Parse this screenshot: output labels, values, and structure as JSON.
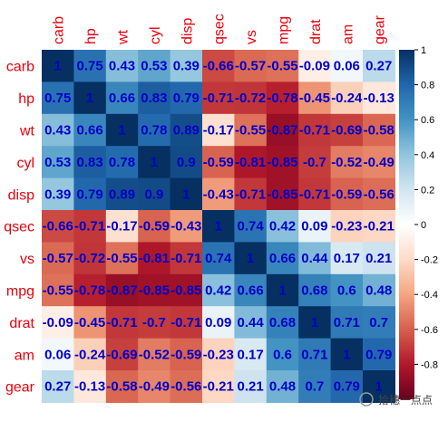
{
  "chart_data": {
    "type": "heatmap",
    "title": "",
    "variables": [
      "carb",
      "hp",
      "wt",
      "cyl",
      "disp",
      "qsec",
      "vs",
      "mpg",
      "drat",
      "am",
      "gear"
    ],
    "matrix": [
      [
        1,
        0.75,
        0.43,
        0.53,
        0.39,
        -0.66,
        -0.57,
        -0.55,
        -0.09,
        0.06,
        0.27
      ],
      [
        0.75,
        1,
        0.66,
        0.83,
        0.79,
        -0.71,
        -0.72,
        -0.78,
        -0.45,
        -0.24,
        -0.13
      ],
      [
        0.43,
        0.66,
        1,
        0.78,
        0.89,
        -0.17,
        -0.55,
        -0.87,
        -0.71,
        -0.69,
        -0.58
      ],
      [
        0.53,
        0.83,
        0.78,
        1,
        0.9,
        -0.59,
        -0.81,
        -0.85,
        -0.7,
        -0.52,
        -0.49
      ],
      [
        0.39,
        0.79,
        0.89,
        0.9,
        1,
        -0.43,
        -0.71,
        -0.85,
        -0.71,
        -0.59,
        -0.56
      ],
      [
        -0.66,
        -0.71,
        -0.17,
        -0.59,
        -0.43,
        1,
        0.74,
        0.42,
        0.09,
        -0.23,
        -0.21
      ],
      [
        -0.57,
        -0.72,
        -0.55,
        -0.81,
        -0.71,
        0.74,
        1,
        0.66,
        0.44,
        0.17,
        0.21
      ],
      [
        -0.55,
        -0.78,
        -0.87,
        -0.85,
        -0.85,
        0.42,
        0.66,
        1,
        0.68,
        0.6,
        0.48
      ],
      [
        -0.09,
        -0.45,
        -0.71,
        -0.7,
        -0.71,
        0.09,
        0.44,
        0.68,
        1,
        0.71,
        0.7
      ],
      [
        0.06,
        -0.24,
        -0.69,
        -0.52,
        -0.59,
        -0.23,
        0.17,
        0.6,
        0.71,
        1,
        0.79
      ],
      [
        0.27,
        -0.13,
        -0.58,
        -0.49,
        -0.56,
        -0.21,
        0.21,
        0.48,
        0.7,
        0.79,
        1
      ]
    ],
    "color_scale": {
      "min": -1,
      "max": 1,
      "low": "#67001f",
      "mid": "#ffffff",
      "high": "#053061"
    },
    "colorbar_ticks": [
      1,
      0.8,
      0.6,
      0.4,
      0.2,
      0,
      -0.2,
      -0.4,
      -0.6,
      -0.8
    ],
    "label_color": "#e8000b",
    "value_color": "#0000cc"
  },
  "watermark": "拾穗一点点"
}
